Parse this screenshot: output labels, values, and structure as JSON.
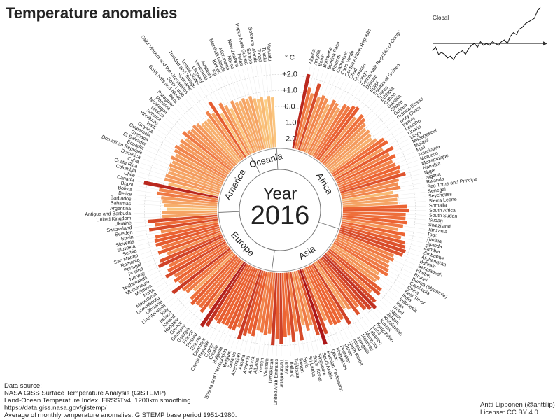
{
  "title": "Temperature anomalies",
  "chart_data": [
    {
      "type": "radial_bar",
      "unit_label": "° C",
      "center_title": "Year",
      "center_value": "2016",
      "ylim": [
        -2.5,
        2.5
      ],
      "yticks": [
        {
          "value": 2,
          "label": "+2.0"
        },
        {
          "value": 1,
          "label": "+1.0"
        },
        {
          "value": 0,
          "label": "0.0"
        },
        {
          "value": -1,
          "label": "-1.0"
        },
        {
          "value": -2,
          "label": "-2.0"
        }
      ],
      "colors": [
        "#fff3c8",
        "#ffe8a8",
        "#fde0a0",
        "#fbcf86",
        "#ec6433",
        "#a50f15"
      ],
      "grid": true,
      "regions": [
        {
          "name": "Africa",
          "categories": [
            "Algeria",
            "Angola",
            "Benin",
            "Botswana",
            "Burkina Faso",
            "Burundi",
            "Cameroon",
            "Cape Verde",
            "Central African Republic",
            "Chad",
            "Comoros",
            "Congo",
            "Democratic Republic of Congo",
            "Djibouti",
            "Egypt",
            "Equatorial Guinea",
            "Eritrea",
            "Ethiopia",
            "Gabon",
            "Gambia",
            "Ghana",
            "Guinea",
            "Guinea-Bissau",
            "Ivory Coast",
            "Kenya",
            "Lesotho",
            "Liberia",
            "Libya",
            "Madagascar",
            "Malawi",
            "Mali",
            "Mauritania",
            "Morocco",
            "Mozambique",
            "Namibia",
            "Niger",
            "Nigeria",
            "Rwanda",
            "Sao Tome and Principe",
            "Senegal",
            "Seychelles",
            "Sierra Leone",
            "Somalia",
            "South Africa",
            "South Sudan",
            "Sudan",
            "Swaziland",
            "Tanzania",
            "Togo",
            "Tunisia",
            "Uganda",
            "Zambia",
            "Zimbabwe"
          ],
          "values": [
            2.2,
            1.4,
            1.1,
            1.8,
            1.0,
            1.2,
            1.1,
            0.8,
            1.2,
            1.1,
            0.9,
            1.3,
            1.3,
            1.5,
            1.6,
            1.0,
            1.4,
            1.3,
            1.1,
            0.9,
            1.0,
            0.9,
            0.8,
            1.0,
            1.4,
            1.5,
            1.0,
            1.6,
            1.2,
            1.5,
            1.2,
            1.3,
            1.5,
            1.4,
            1.7,
            1.2,
            1.1,
            1.2,
            0.7,
            1.0,
            0.9,
            0.9,
            1.5,
            1.6,
            1.4,
            1.4,
            1.5,
            1.3,
            1.0,
            1.5,
            1.3,
            1.6,
            1.7
          ]
        },
        {
          "name": "Asia",
          "categories": [
            "Afghanistan",
            "Bahrain",
            "Bangladesh",
            "Bhutan",
            "Brunei",
            "Burma (Myanmar)",
            "Cambodia",
            "China",
            "East Timor",
            "India",
            "Indonesia",
            "Iran",
            "Israel",
            "Japan",
            "Jordan",
            "Kazakhstan",
            "Kuwait",
            "Kyrgyzstan",
            "Laos",
            "Lebanon",
            "Malaysia",
            "Maldives",
            "Mongolia",
            "Nepal",
            "North Korea",
            "Oman",
            "Pakistan",
            "Philippines",
            "Qatar",
            "Russian Federation",
            "Saudi Arabia",
            "Singapore",
            "South Korea",
            "Sri Lanka",
            "Syria",
            "Taiwan",
            "Tajikistan",
            "Thailand",
            "Turkey",
            "Turkmenistan",
            "United Arab Emirates",
            "Uzbekistan",
            "Vietnam",
            "Yemen"
          ],
          "values": [
            1.8,
            1.7,
            1.2,
            1.3,
            1.1,
            1.2,
            1.3,
            1.4,
            0.9,
            1.1,
            1.0,
            1.6,
            1.7,
            1.2,
            1.8,
            2.1,
            1.9,
            1.7,
            1.3,
            1.7,
            1.1,
            0.9,
            1.9,
            1.4,
            1.5,
            1.5,
            1.4,
            1.0,
            1.8,
            2.4,
            1.7,
            1.0,
            1.3,
            0.9,
            1.8,
            1.2,
            1.8,
            1.4,
            1.5,
            1.9,
            1.6,
            2.0,
            1.3,
            1.4
          ]
        },
        {
          "name": "Europe",
          "categories": [
            "Albania",
            "Andorra",
            "Armenia",
            "Austria",
            "Azerbaijan",
            "Belarus",
            "Belgium",
            "Bosnia and Herzegovina",
            "Bulgaria",
            "Croatia",
            "Cyprus",
            "Czech Republic",
            "Denmark",
            "Estonia",
            "Finland",
            "France",
            "Georgia",
            "Germany",
            "Greece",
            "Hungary",
            "Iceland",
            "Ireland",
            "Italy",
            "Liechtenstein",
            "Lithuania",
            "Luxembourg",
            "Macedonia",
            "Malta",
            "Moldova",
            "Montenegro",
            "Netherlands",
            "Norway",
            "Poland",
            "Portugal",
            "Romania",
            "San Marino",
            "Serbia",
            "Slovakia",
            "Slovenia",
            "Spain",
            "Sweden",
            "Switzerland",
            "Ukraine",
            "United Kingdom"
          ],
          "values": [
            1.3,
            1.2,
            1.6,
            1.5,
            1.7,
            2.0,
            1.3,
            1.6,
            1.6,
            1.5,
            1.5,
            1.6,
            1.5,
            2.1,
            2.3,
            1.1,
            1.6,
            1.4,
            1.4,
            1.6,
            1.4,
            0.9,
            1.3,
            1.4,
            2.0,
            1.3,
            1.5,
            1.3,
            1.8,
            1.5,
            1.3,
            1.9,
            1.7,
            1.1,
            1.6,
            1.3,
            1.6,
            1.6,
            1.5,
            1.1,
            1.8,
            1.4,
            1.8,
            0.9
          ]
        },
        {
          "name": "America",
          "categories": [
            "Antigua and Barbuda",
            "Argentina",
            "Bahamas",
            "Barbados",
            "Belize",
            "Bolivia",
            "Brazil",
            "Canada",
            "Chile",
            "Colombia",
            "Costa Rica",
            "Cuba",
            "Dominica",
            "Dominican Republic",
            "Ecuador",
            "El Salvador",
            "Grenada",
            "Guatemala",
            "Guyana",
            "Haiti",
            "Honduras",
            "Jamaica",
            "Mexico",
            "Nicaragua",
            "Panama",
            "Paraguay",
            "Peru",
            "Saint Kitts and Nevis",
            "Saint Lucia",
            "Saint Vincent and the Grenadines",
            "Suriname",
            "Trinidad and Tobago",
            "United States",
            "Uruguay",
            "Venezuela"
          ],
          "values": [
            0.9,
            0.6,
            0.8,
            0.9,
            1.0,
            1.3,
            1.2,
            2.2,
            0.7,
            1.0,
            1.0,
            0.9,
            0.9,
            1.0,
            0.9,
            1.1,
            0.9,
            1.1,
            1.2,
            1.0,
            1.1,
            0.9,
            1.3,
            1.1,
            1.0,
            1.1,
            1.0,
            0.8,
            0.8,
            0.8,
            1.2,
            0.9,
            1.6,
            0.6,
            1.2
          ]
        },
        {
          "name": "Oceania",
          "categories": [
            "Australia",
            "Fiji",
            "Kiribati",
            "Marshall Islands",
            "Micronesia",
            "Nauru",
            "New Zealand",
            "Palau",
            "Papua New Guinea",
            "Samoa",
            "Solomon Islands",
            "Tonga",
            "Tuvalu",
            "Vanuatu"
          ],
          "values": [
            0.9,
            0.6,
            1.0,
            0.8,
            0.8,
            0.9,
            0.8,
            0.9,
            0.7,
            0.6,
            0.7,
            0.5,
            0.7,
            0.6
          ]
        }
      ]
    },
    {
      "type": "line",
      "title": "Global",
      "color": "#111",
      "ylim": [
        -0.5,
        1.05
      ],
      "values": [
        -0.2,
        -0.1,
        -0.3,
        -0.25,
        -0.3,
        -0.4,
        -0.35,
        -0.45,
        -0.3,
        -0.25,
        -0.2,
        -0.3,
        -0.15,
        -0.05,
        0.0,
        -0.1,
        0.05,
        -0.05,
        0.0,
        -0.05,
        0.05,
        0.0,
        -0.05,
        0.05,
        0.1,
        0.0,
        0.2,
        0.3,
        0.25,
        0.4,
        0.45,
        0.55,
        0.6,
        0.65,
        0.7,
        0.9,
        1.0
      ]
    }
  ],
  "footer": {
    "source": [
      "Data source:",
      "NASA GISS Surface Temperature Analysis (GISTEMP)",
      "Land-Ocean Temperature Index, ERSSTv4, 1200km smoothing",
      "https://data.giss.nasa.gov/gistemp/",
      "Average of monthly temperature anomalies. GISTEMP base period 1951-1980."
    ],
    "credit": [
      "Antti Lipponen (@anttilip)",
      "License: CC BY 4.0"
    ]
  }
}
